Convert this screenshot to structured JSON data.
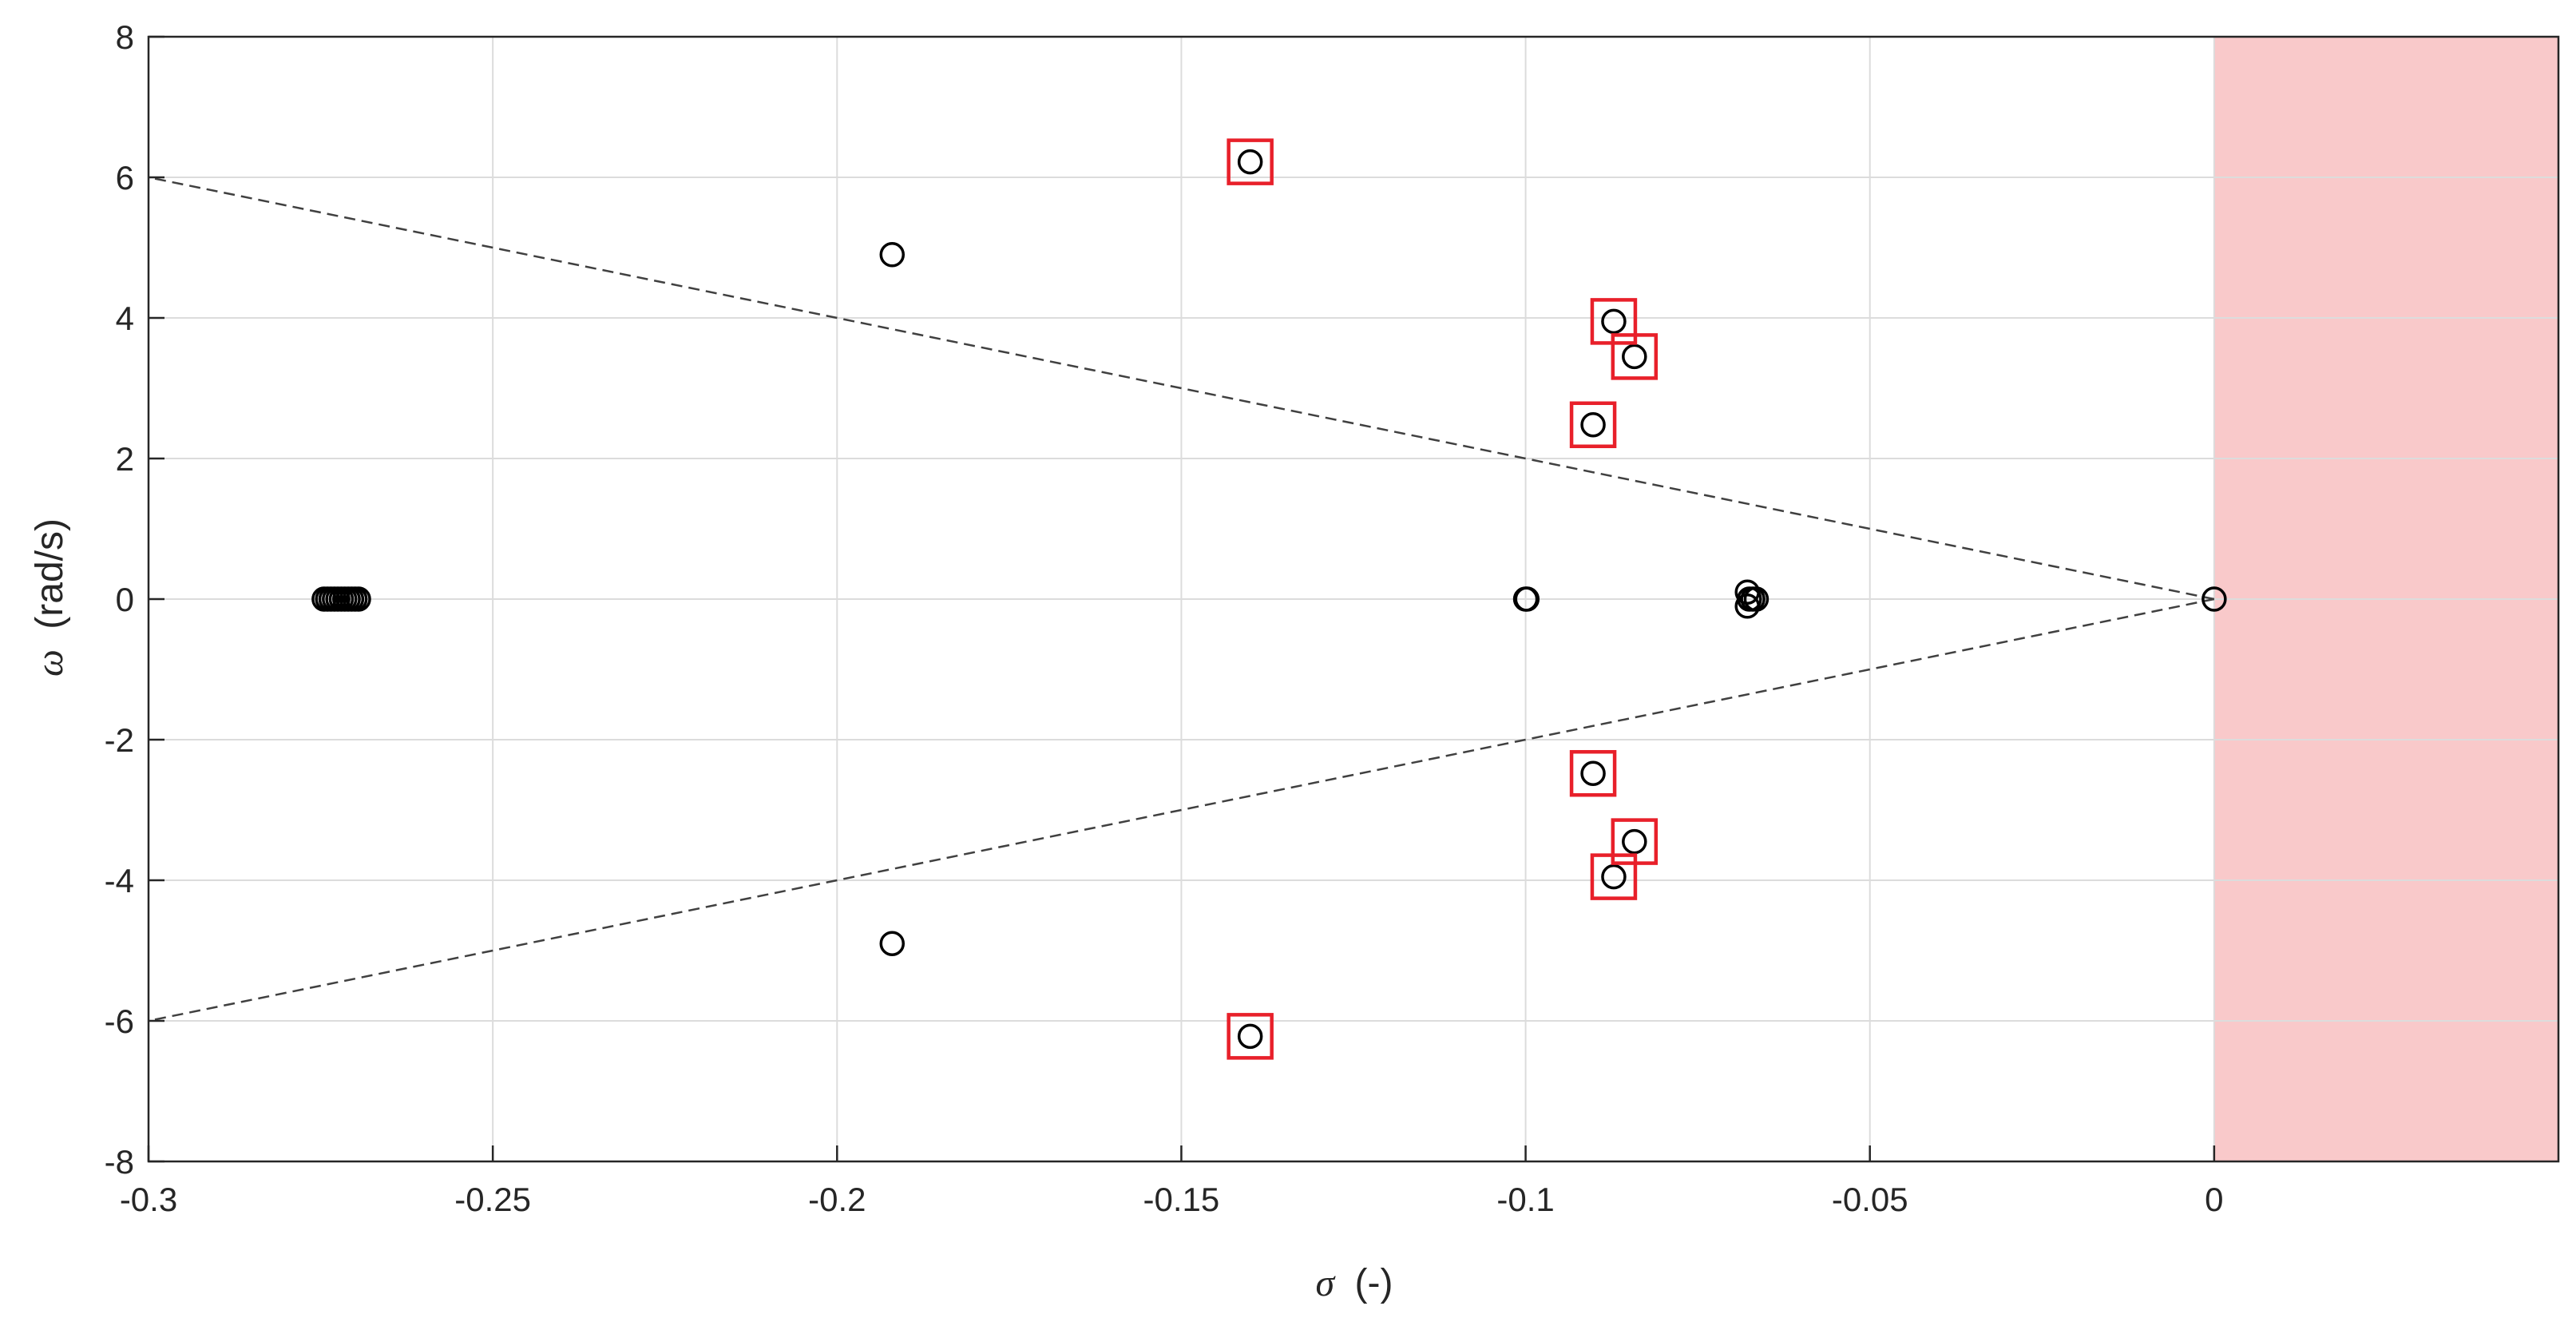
{
  "chart_data": {
    "type": "scatter",
    "xlabel_symbol": "σ",
    "xlabel_unit": "(-)",
    "ylabel_symbol": "ω",
    "ylabel_unit": "(rad/s)",
    "xlim": [
      -0.3,
      0.05
    ],
    "ylim": [
      -8,
      8
    ],
    "xticks": [
      -0.3,
      -0.25,
      -0.2,
      -0.15,
      -0.1,
      -0.05,
      0
    ],
    "xtick_labels": [
      "-0.3",
      "-0.25",
      "-0.2",
      "-0.15",
      "-0.1",
      "-0.05",
      "0"
    ],
    "yticks": [
      -8,
      -6,
      -4,
      -2,
      0,
      2,
      4,
      6,
      8
    ],
    "ytick_labels": [
      "-8",
      "-6",
      "-4",
      "-2",
      "0",
      "2",
      "4",
      "6",
      "8"
    ],
    "grid": true,
    "unstable_region": {
      "x": [
        0,
        0.05
      ],
      "color": "#f9c9ca"
    },
    "damping_lines": [
      {
        "from": [
          0,
          0
        ],
        "to": [
          -0.3,
          6
        ]
      },
      {
        "from": [
          0,
          0
        ],
        "to": [
          -0.3,
          -6
        ]
      }
    ],
    "poles": [
      {
        "x": -0.2745,
        "y": 0
      },
      {
        "x": -0.274,
        "y": 0
      },
      {
        "x": -0.2735,
        "y": 0
      },
      {
        "x": -0.273,
        "y": 0
      },
      {
        "x": -0.2725,
        "y": 0
      },
      {
        "x": -0.272,
        "y": 0
      },
      {
        "x": -0.2715,
        "y": 0
      },
      {
        "x": -0.271,
        "y": 0
      },
      {
        "x": -0.2705,
        "y": 0
      },
      {
        "x": -0.27,
        "y": 0
      },
      {
        "x": -0.2695,
        "y": 0
      },
      {
        "x": -0.192,
        "y": 4.9
      },
      {
        "x": -0.192,
        "y": -4.9
      },
      {
        "x": -0.14,
        "y": 6.22
      },
      {
        "x": -0.14,
        "y": -6.22
      },
      {
        "x": -0.1,
        "y": 0
      },
      {
        "x": -0.0998,
        "y": 0
      },
      {
        "x": -0.0902,
        "y": 2.48
      },
      {
        "x": -0.0902,
        "y": -2.48
      },
      {
        "x": -0.0872,
        "y": 3.95
      },
      {
        "x": -0.0872,
        "y": -3.95
      },
      {
        "x": -0.0842,
        "y": 3.45
      },
      {
        "x": -0.0842,
        "y": -3.45
      },
      {
        "x": -0.0678,
        "y": 0.1
      },
      {
        "x": -0.0678,
        "y": -0.1
      },
      {
        "x": -0.0675,
        "y": 0
      },
      {
        "x": -0.067,
        "y": 0
      },
      {
        "x": -0.0665,
        "y": 0
      },
      {
        "x": 0,
        "y": 0
      }
    ],
    "highlighted": [
      {
        "x": -0.14,
        "y": 6.22
      },
      {
        "x": -0.14,
        "y": -6.22
      },
      {
        "x": -0.0902,
        "y": 2.48
      },
      {
        "x": -0.0902,
        "y": -2.48
      },
      {
        "x": -0.0872,
        "y": 3.95
      },
      {
        "x": -0.0872,
        "y": -3.95
      },
      {
        "x": -0.0842,
        "y": 3.45
      },
      {
        "x": -0.0842,
        "y": -3.45
      }
    ],
    "colors": {
      "pole": "#000000",
      "highlight": "#e8202a",
      "grid": "#dcdcdc",
      "axis": "#262626",
      "damping_line": "#404040"
    }
  }
}
